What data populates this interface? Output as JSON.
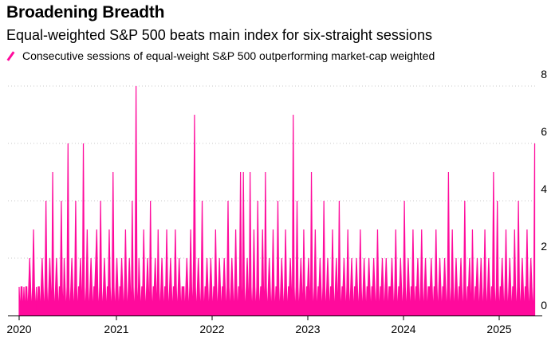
{
  "chart_data": {
    "type": "line",
    "title": "Broadening Breadth",
    "subtitle": "Equal-weighted S&P 500 beats main index for six-straight sessions",
    "legend": [
      {
        "label": "Consecutive sessions of equal-weight S&P 500 outperforming market-cap weighted",
        "color": "#ff0a9c"
      }
    ],
    "series_color": "#ff0a9c",
    "x_ticks": [
      "2020",
      "2021",
      "2022",
      "2023",
      "2024",
      "2025"
    ],
    "y_ticks": [
      "0",
      "2",
      "4",
      "6",
      "8"
    ],
    "ylim": [
      0,
      8
    ],
    "xlim": [
      2020.0,
      2025.42
    ],
    "grid": "horizontal dotted",
    "y_axis_position": "right",
    "x_start": 2020.0,
    "x_end": 2025.37,
    "values": [
      1,
      0,
      1,
      1,
      0,
      1,
      0,
      1,
      1,
      0,
      1,
      2,
      1,
      0,
      1,
      3,
      1,
      0,
      1,
      0,
      1,
      1,
      0,
      1,
      2,
      1,
      0,
      1,
      4,
      1,
      0,
      1,
      2,
      1,
      0,
      5,
      1,
      0,
      1,
      2,
      1,
      0,
      1,
      1,
      4,
      1,
      0,
      2,
      1,
      0,
      1,
      6,
      1,
      0,
      1,
      2,
      1,
      0,
      1,
      4,
      1,
      0,
      1,
      1,
      2,
      1,
      0,
      6,
      1,
      0,
      1,
      3,
      1,
      0,
      1,
      2,
      1,
      0,
      1,
      1,
      2,
      3,
      1,
      0,
      1,
      4,
      1,
      0,
      1,
      2,
      1,
      0,
      1,
      1,
      3,
      1,
      0,
      1,
      5,
      1,
      0,
      1,
      2,
      1,
      0,
      1,
      1,
      2,
      1,
      0,
      1,
      3,
      1,
      0,
      1,
      2,
      1,
      0,
      4,
      1,
      0,
      1,
      8,
      1,
      0,
      2,
      1,
      0,
      1,
      1,
      3,
      1,
      0,
      1,
      2,
      1,
      0,
      4,
      1,
      0,
      1,
      1,
      2,
      1,
      0,
      3,
      1,
      0,
      1,
      2,
      1,
      0,
      1,
      1,
      3,
      1,
      0,
      1,
      2,
      1,
      0,
      1,
      1,
      3,
      1,
      0,
      1,
      2,
      1,
      0,
      1,
      1,
      1,
      0,
      1,
      2,
      1,
      0,
      1,
      3,
      1,
      0,
      2,
      7,
      1,
      0,
      1,
      2,
      1,
      0,
      1,
      4,
      1,
      0,
      1,
      1,
      2,
      1,
      0,
      1,
      2,
      1,
      0,
      1,
      1,
      3,
      1,
      0,
      1,
      2,
      1,
      0,
      1,
      1,
      2,
      1,
      0,
      1,
      4,
      1,
      0,
      1,
      2,
      1,
      0,
      1,
      3,
      1,
      0,
      1,
      1,
      5,
      1,
      0,
      5,
      1,
      0,
      1,
      2,
      1,
      0,
      5,
      1,
      0,
      1,
      3,
      1,
      0,
      1,
      4,
      1,
      0,
      1,
      1,
      3,
      1,
      0,
      5,
      1,
      0,
      1,
      2,
      1,
      0,
      1,
      3,
      1,
      0,
      1,
      1,
      4,
      1,
      0,
      1,
      2,
      1,
      0,
      1,
      3,
      1,
      0,
      1,
      1,
      2,
      1,
      0,
      7,
      1,
      0,
      1,
      4,
      1,
      0,
      1,
      2,
      1,
      0,
      3,
      1,
      0,
      1,
      1,
      2,
      1,
      0,
      5,
      1,
      0,
      1,
      3,
      1,
      0,
      1,
      1,
      2,
      1,
      0,
      1,
      4,
      1,
      0,
      1,
      2,
      1,
      0,
      1,
      1,
      3,
      1,
      0,
      1,
      2,
      1,
      0,
      4,
      1,
      0,
      1,
      1,
      2,
      1,
      0,
      1,
      3,
      1,
      0,
      1,
      2,
      1,
      0,
      1,
      1,
      2,
      1,
      0,
      1,
      3,
      1,
      0,
      1,
      2,
      1,
      0,
      1,
      1,
      2,
      1,
      0,
      1,
      1,
      2,
      1,
      0,
      1,
      3,
      1,
      0,
      1,
      1,
      2,
      1,
      0,
      1,
      2,
      1,
      0,
      1,
      1,
      1,
      2,
      1,
      0,
      1,
      3,
      1,
      0,
      1,
      1,
      2,
      1,
      0,
      1,
      4,
      1,
      0,
      1,
      2,
      1,
      0,
      1,
      1,
      3,
      1,
      0,
      1,
      1,
      2,
      1,
      0,
      1,
      3,
      1,
      0,
      1,
      2,
      1,
      0,
      1,
      1,
      1,
      2,
      1,
      0,
      1,
      1,
      3,
      1,
      0,
      1,
      2,
      1,
      0,
      1,
      1,
      2,
      1,
      0,
      1,
      5,
      1,
      0,
      1,
      3,
      1,
      0,
      1,
      2,
      1,
      0,
      1,
      1,
      2,
      1,
      0,
      1,
      4,
      1,
      0,
      1,
      1,
      2,
      1,
      0,
      3,
      1,
      0,
      1,
      1,
      2,
      1,
      0,
      1,
      2,
      1,
      0,
      1,
      3,
      1,
      0,
      1,
      2,
      1,
      0,
      1,
      1,
      5,
      1,
      0,
      1,
      4,
      1,
      0,
      1,
      1,
      2,
      1,
      0,
      1,
      3,
      1,
      0,
      1,
      2,
      1,
      0,
      1,
      1,
      3,
      1,
      0,
      1,
      4,
      1,
      0,
      1,
      2,
      1,
      0,
      1,
      1,
      3,
      1,
      0,
      1,
      2,
      1,
      0,
      1,
      6
    ]
  }
}
